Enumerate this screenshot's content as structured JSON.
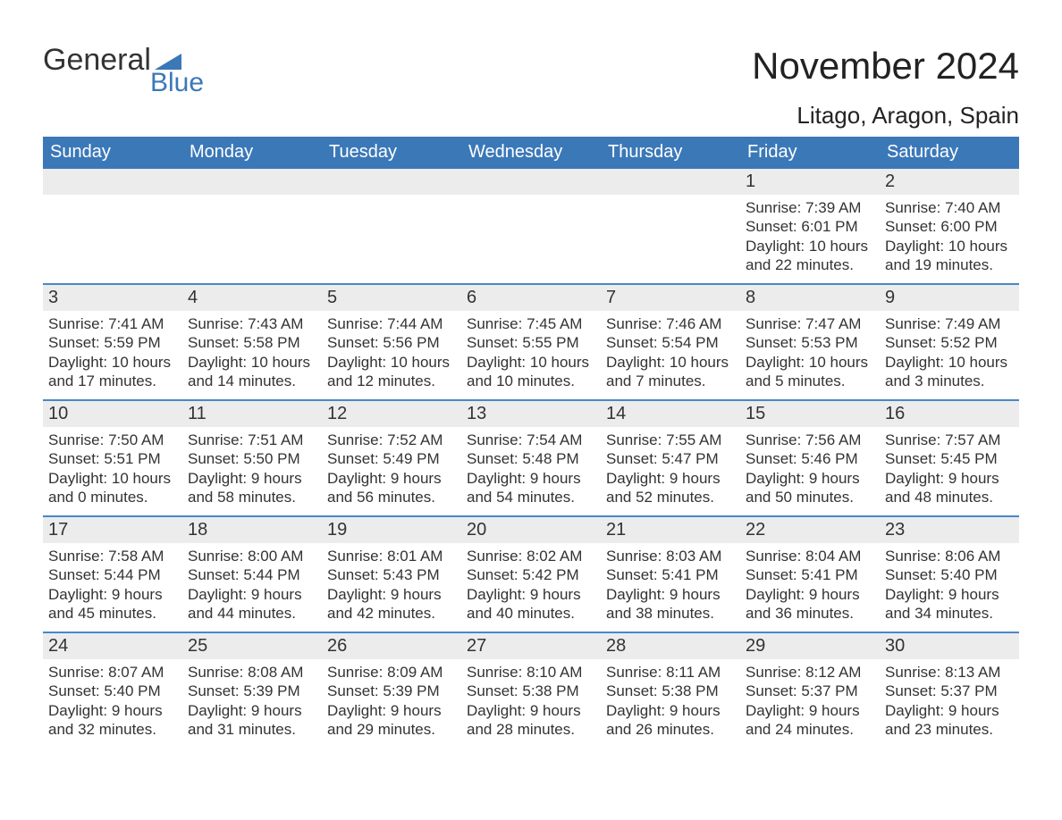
{
  "brand": {
    "part1": "General",
    "part2": "Blue",
    "brand_color": "#3b78b8"
  },
  "header": {
    "month_title": "November 2024",
    "location": "Litago, Aragon, Spain"
  },
  "colors": {
    "header_bg": "#3b78b8",
    "row_separator": "#4a87c7",
    "daynum_bg": "#ececec",
    "page_bg": "#ffffff",
    "text": "#2b2b2b"
  },
  "layout": {
    "columns": 7,
    "weeks": 5,
    "dow_fontsize_pt": 15,
    "title_fontsize_pt": 32,
    "location_fontsize_pt": 19,
    "body_fontsize_pt": 13
  },
  "days_of_week": [
    "Sunday",
    "Monday",
    "Tuesday",
    "Wednesday",
    "Thursday",
    "Friday",
    "Saturday"
  ],
  "weeks": [
    [
      null,
      null,
      null,
      null,
      null,
      {
        "day": 1,
        "sunrise": "7:39 AM",
        "sunset": "6:01 PM",
        "daylight_l1": "Daylight: 10 hours",
        "daylight_l2": "and 22 minutes."
      },
      {
        "day": 2,
        "sunrise": "7:40 AM",
        "sunset": "6:00 PM",
        "daylight_l1": "Daylight: 10 hours",
        "daylight_l2": "and 19 minutes."
      }
    ],
    [
      {
        "day": 3,
        "sunrise": "7:41 AM",
        "sunset": "5:59 PM",
        "daylight_l1": "Daylight: 10 hours",
        "daylight_l2": "and 17 minutes."
      },
      {
        "day": 4,
        "sunrise": "7:43 AM",
        "sunset": "5:58 PM",
        "daylight_l1": "Daylight: 10 hours",
        "daylight_l2": "and 14 minutes."
      },
      {
        "day": 5,
        "sunrise": "7:44 AM",
        "sunset": "5:56 PM",
        "daylight_l1": "Daylight: 10 hours",
        "daylight_l2": "and 12 minutes."
      },
      {
        "day": 6,
        "sunrise": "7:45 AM",
        "sunset": "5:55 PM",
        "daylight_l1": "Daylight: 10 hours",
        "daylight_l2": "and 10 minutes."
      },
      {
        "day": 7,
        "sunrise": "7:46 AM",
        "sunset": "5:54 PM",
        "daylight_l1": "Daylight: 10 hours",
        "daylight_l2": "and 7 minutes."
      },
      {
        "day": 8,
        "sunrise": "7:47 AM",
        "sunset": "5:53 PM",
        "daylight_l1": "Daylight: 10 hours",
        "daylight_l2": "and 5 minutes."
      },
      {
        "day": 9,
        "sunrise": "7:49 AM",
        "sunset": "5:52 PM",
        "daylight_l1": "Daylight: 10 hours",
        "daylight_l2": "and 3 minutes."
      }
    ],
    [
      {
        "day": 10,
        "sunrise": "7:50 AM",
        "sunset": "5:51 PM",
        "daylight_l1": "Daylight: 10 hours",
        "daylight_l2": "and 0 minutes."
      },
      {
        "day": 11,
        "sunrise": "7:51 AM",
        "sunset": "5:50 PM",
        "daylight_l1": "Daylight: 9 hours",
        "daylight_l2": "and 58 minutes."
      },
      {
        "day": 12,
        "sunrise": "7:52 AM",
        "sunset": "5:49 PM",
        "daylight_l1": "Daylight: 9 hours",
        "daylight_l2": "and 56 minutes."
      },
      {
        "day": 13,
        "sunrise": "7:54 AM",
        "sunset": "5:48 PM",
        "daylight_l1": "Daylight: 9 hours",
        "daylight_l2": "and 54 minutes."
      },
      {
        "day": 14,
        "sunrise": "7:55 AM",
        "sunset": "5:47 PM",
        "daylight_l1": "Daylight: 9 hours",
        "daylight_l2": "and 52 minutes."
      },
      {
        "day": 15,
        "sunrise": "7:56 AM",
        "sunset": "5:46 PM",
        "daylight_l1": "Daylight: 9 hours",
        "daylight_l2": "and 50 minutes."
      },
      {
        "day": 16,
        "sunrise": "7:57 AM",
        "sunset": "5:45 PM",
        "daylight_l1": "Daylight: 9 hours",
        "daylight_l2": "and 48 minutes."
      }
    ],
    [
      {
        "day": 17,
        "sunrise": "7:58 AM",
        "sunset": "5:44 PM",
        "daylight_l1": "Daylight: 9 hours",
        "daylight_l2": "and 45 minutes."
      },
      {
        "day": 18,
        "sunrise": "8:00 AM",
        "sunset": "5:44 PM",
        "daylight_l1": "Daylight: 9 hours",
        "daylight_l2": "and 44 minutes."
      },
      {
        "day": 19,
        "sunrise": "8:01 AM",
        "sunset": "5:43 PM",
        "daylight_l1": "Daylight: 9 hours",
        "daylight_l2": "and 42 minutes."
      },
      {
        "day": 20,
        "sunrise": "8:02 AM",
        "sunset": "5:42 PM",
        "daylight_l1": "Daylight: 9 hours",
        "daylight_l2": "and 40 minutes."
      },
      {
        "day": 21,
        "sunrise": "8:03 AM",
        "sunset": "5:41 PM",
        "daylight_l1": "Daylight: 9 hours",
        "daylight_l2": "and 38 minutes."
      },
      {
        "day": 22,
        "sunrise": "8:04 AM",
        "sunset": "5:41 PM",
        "daylight_l1": "Daylight: 9 hours",
        "daylight_l2": "and 36 minutes."
      },
      {
        "day": 23,
        "sunrise": "8:06 AM",
        "sunset": "5:40 PM",
        "daylight_l1": "Daylight: 9 hours",
        "daylight_l2": "and 34 minutes."
      }
    ],
    [
      {
        "day": 24,
        "sunrise": "8:07 AM",
        "sunset": "5:40 PM",
        "daylight_l1": "Daylight: 9 hours",
        "daylight_l2": "and 32 minutes."
      },
      {
        "day": 25,
        "sunrise": "8:08 AM",
        "sunset": "5:39 PM",
        "daylight_l1": "Daylight: 9 hours",
        "daylight_l2": "and 31 minutes."
      },
      {
        "day": 26,
        "sunrise": "8:09 AM",
        "sunset": "5:39 PM",
        "daylight_l1": "Daylight: 9 hours",
        "daylight_l2": "and 29 minutes."
      },
      {
        "day": 27,
        "sunrise": "8:10 AM",
        "sunset": "5:38 PM",
        "daylight_l1": "Daylight: 9 hours",
        "daylight_l2": "and 28 minutes."
      },
      {
        "day": 28,
        "sunrise": "8:11 AM",
        "sunset": "5:38 PM",
        "daylight_l1": "Daylight: 9 hours",
        "daylight_l2": "and 26 minutes."
      },
      {
        "day": 29,
        "sunrise": "8:12 AM",
        "sunset": "5:37 PM",
        "daylight_l1": "Daylight: 9 hours",
        "daylight_l2": "and 24 minutes."
      },
      {
        "day": 30,
        "sunrise": "8:13 AM",
        "sunset": "5:37 PM",
        "daylight_l1": "Daylight: 9 hours",
        "daylight_l2": "and 23 minutes."
      }
    ]
  ],
  "labels": {
    "sunrise_prefix": "Sunrise: ",
    "sunset_prefix": "Sunset: "
  }
}
